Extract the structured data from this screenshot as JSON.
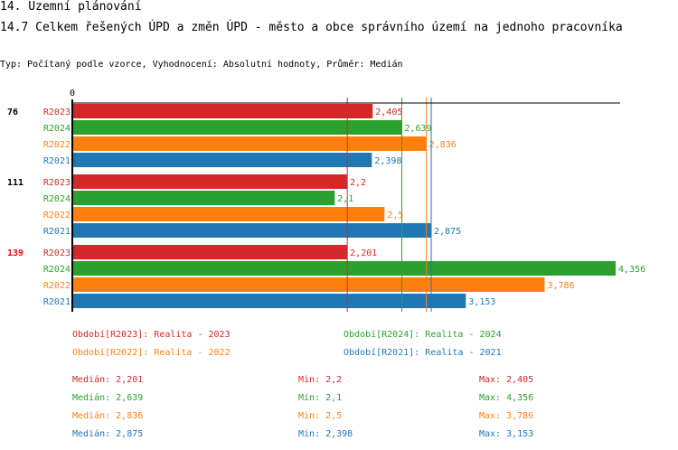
{
  "header": {
    "section": "14. Územní plánování",
    "title": "14.7 Celkem řešených ÚPD a změn ÚPD - město a obce správního území  na jednoho pracovníka",
    "subtitle": "Typ: Počítaný podle vzorce, Vyhodnocení: Absolutní hodnoty, Průměr: Medián"
  },
  "chart_data": {
    "type": "bar",
    "orientation": "horizontal",
    "xlim": [
      0,
      4.356
    ],
    "x_tick_labels": [
      "0"
    ],
    "categories": [
      "76",
      "111",
      "139"
    ],
    "category_colors": [
      "#000000",
      "#000000",
      "#ff0000"
    ],
    "series": [
      {
        "name": "R2023",
        "color": "#d62728",
        "values": [
          2.405,
          2.2,
          2.201
        ],
        "labels": [
          "2,405",
          "2,2",
          "2,201"
        ]
      },
      {
        "name": "R2024",
        "color": "#2ca02c",
        "values": [
          2.639,
          2.1,
          4.356
        ],
        "labels": [
          "2,639",
          "2,1",
          "4,356"
        ]
      },
      {
        "name": "R2022",
        "color": "#ff7f0e",
        "values": [
          2.836,
          2.5,
          3.786
        ],
        "labels": [
          "2,836",
          "2,5",
          "3,786"
        ]
      },
      {
        "name": "R2021",
        "color": "#1f77b4",
        "values": [
          2.398,
          2.875,
          3.153
        ],
        "labels": [
          "2,398",
          "2,875",
          "3,153"
        ]
      }
    ],
    "median_lines": [
      2.201,
      2.639,
      2.836,
      2.875
    ],
    "legend": [
      "Období[R2023]: Realita - 2023",
      "Období[R2024]: Realita - 2024",
      "Období[R2022]: Realita - 2022",
      "Období[R2021]: Realita - 2021"
    ],
    "stats": [
      {
        "median": "Medián: 2,201",
        "min": "Min: 2,2",
        "max": "Max: 2,405"
      },
      {
        "median": "Medián: 2,639",
        "min": "Min: 2,1",
        "max": "Max: 4,356"
      },
      {
        "median": "Medián: 2,836",
        "min": "Min: 2,5",
        "max": "Max: 3,786"
      },
      {
        "median": "Medián: 2,875",
        "min": "Min: 2,398",
        "max": "Max: 3,153"
      }
    ]
  }
}
